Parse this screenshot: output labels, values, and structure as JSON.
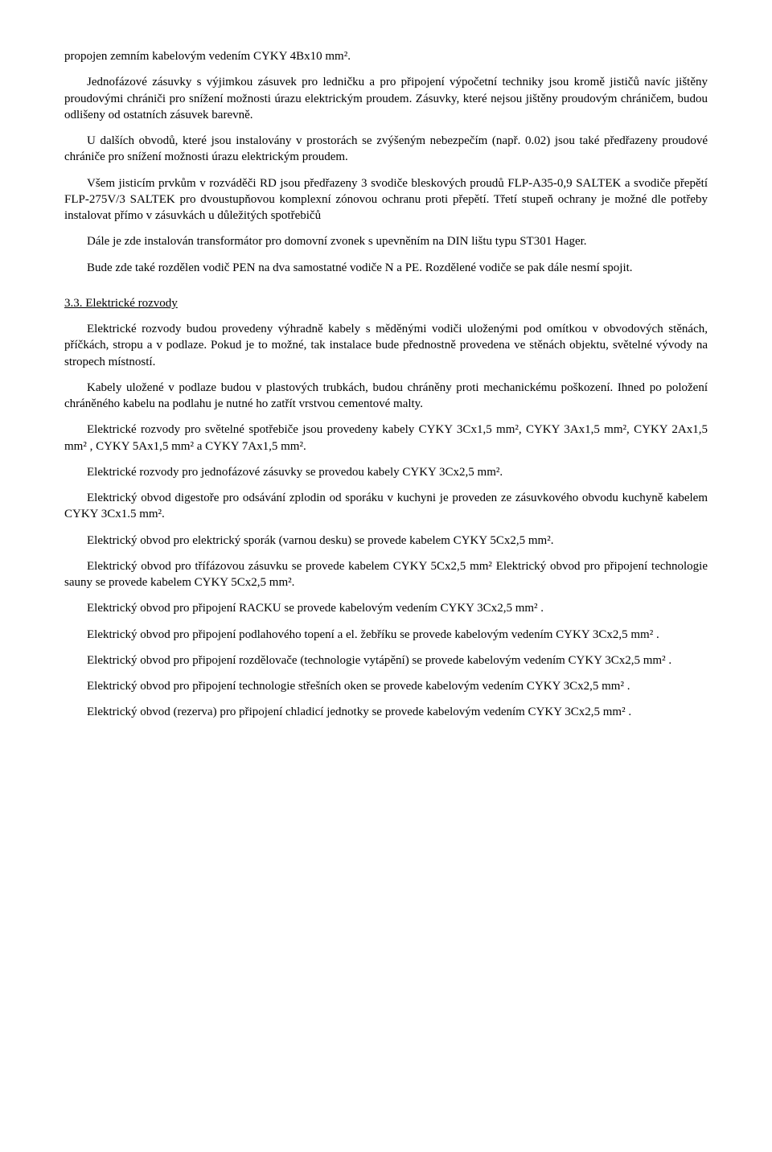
{
  "paragraphs": {
    "p1": "propojen zemním  kabelovým vedením CYKY 4Bx10 mm².",
    "p2": "Jednofázové zásuvky s výjimkou zásuvek pro ledničku a pro připojení výpočetní techniky jsou kromě jističů navíc jištěny proudovými chrániči pro snížení možnosti úrazu elektrickým proudem. Zásuvky, které nejsou jištěny proudovým chráničem, budou odlišeny od ostatních zásuvek barevně.",
    "p3": "U dalších obvodů, které jsou instalovány v prostorách se zvýšeným nebezpečím (např. 0.02) jsou také předřazeny proudové chrániče pro snížení možnosti úrazu elektrickým proudem.",
    "p4": " Všem jisticím prvkům v rozváděči RD jsou předřazeny 3 svodiče bleskových proudů FLP-A35-0,9 SALTEK a svodiče přepětí FLP-275V/3 SALTEK pro dvoustupňovou komplexní zónovou ochranu proti přepětí. Třetí stupeň ochrany je možné dle potřeby instalovat přímo v zásuvkách u důležitých spotřebičů",
    "p5": "Dále je zde instalován transformátor pro domovní zvonek s upevněním na DIN lištu typu ST301 Hager.",
    "p6": "Bude zde také rozdělen vodič PEN na dva samostatné vodiče N a PE. Rozdělené vodiče se pak dále nesmí spojit.",
    "section_title": "3.3. Elektrické rozvody",
    "p7": "Elektrické rozvody budou provedeny výhradně kabely s měděnými vodiči uloženými pod omítkou v obvodových stěnách, příčkách, stropu a v podlaze. Pokud je to možné, tak instalace bude přednostně provedena ve stěnách objektu, světelné vývody na stropech místností.",
    "p8": "Kabely uložené v podlaze budou v plastových trubkách, budou chráněny proti mechanickému poškození. Ihned po položení chráněného kabelu na podlahu je nutné ho zatřít vrstvou cementové malty.",
    "p9": "Elektrické rozvody pro světelné spotřebiče jsou provedeny kabely CYKY 3Cx1,5 mm², CYKY 3Ax1,5 mm², CYKY 2Ax1,5 mm² , CYKY 5Ax1,5 mm² a CYKY 7Ax1,5 mm².",
    "p10": "Elektrické rozvody pro jednofázové zásuvky se provedou kabely CYKY 3Cx2,5 mm².",
    "p11": "Elektrický obvod digestoře pro odsávání zplodin od sporáku v kuchyni je proveden ze zásuvkového obvodu kuchyně kabelem CYKY 3Cx1.5 mm².",
    "p12": "Elektrický obvod pro elektrický sporák (varnou desku) se provede kabelem CYKY 5Cx2,5 mm².",
    "p13": "Elektrický obvod pro třífázovou zásuvku se provede kabelem CYKY 5Cx2,5 mm² Elektrický obvod pro připojení technologie sauny se provede kabelem CYKY 5Cx2,5 mm².",
    "p14": "Elektrický obvod pro připojení RACKU se provede kabelovým vedením CYKY 3Cx2,5 mm² .",
    "p15": "Elektrický obvod pro připojení podlahového topení a el. žebříku se provede kabelovým vedením CYKY 3Cx2,5 mm² .",
    "p16": "Elektrický obvod pro připojení rozdělovače (technologie vytápění) se provede kabelovým vedením CYKY 3Cx2,5 mm² .",
    "p17": "Elektrický obvod pro připojení technologie střešních oken se provede kabelovým vedením CYKY 3Cx2,5 mm² .",
    "p18": "Elektrický obvod (rezerva) pro připojení chladicí jednotky se provede kabelovým vedením CYKY 3Cx2,5 mm² ."
  }
}
